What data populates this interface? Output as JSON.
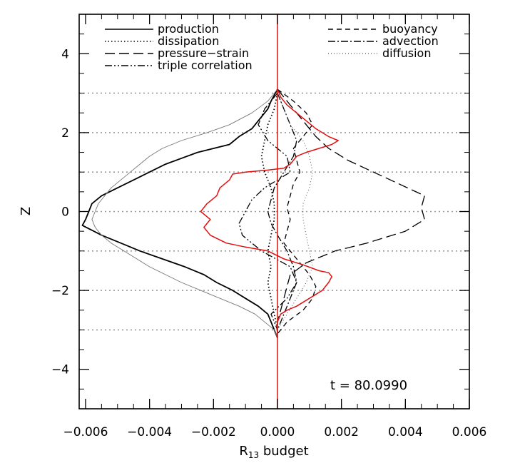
{
  "chart_data": {
    "type": "line",
    "xlabel_main": "R",
    "xlabel_sub": "13",
    "xlabel_rest": " budget",
    "ylabel": "Z",
    "annotation": "t = 80.0990",
    "xlim": [
      -0.0062,
      0.006
    ],
    "ylim": [
      -5,
      5
    ],
    "xticks": [
      -0.006,
      -0.004,
      -0.002,
      0.0,
      0.002,
      0.004,
      0.006
    ],
    "xtick_labels": [
      "−0.006",
      "−0.004",
      "−0.002",
      "0.000",
      "0.002",
      "0.004",
      "0.006"
    ],
    "yticks": [
      -4,
      -2,
      0,
      2,
      4
    ],
    "ytick_labels": [
      "−4",
      "−2",
      "0",
      "2",
      "4"
    ],
    "hlines": [
      -3,
      -2,
      -1,
      0,
      1,
      2,
      3
    ],
    "hline_style": "dotted grey",
    "legend": [
      {
        "label": "production",
        "dash": "solid"
      },
      {
        "label": "dissipation",
        "dash": "dotted"
      },
      {
        "label": "pressure−strain",
        "dash": "longdash"
      },
      {
        "label": "triple correlation",
        "dash": "dashdotdot"
      },
      {
        "label": "buoyancy",
        "dash": "dashed"
      },
      {
        "label": "advection",
        "dash": "dashdot"
      },
      {
        "label": "diffusion",
        "dash": "thindotted"
      }
    ],
    "series": [
      {
        "name": "production",
        "style": "solid",
        "color": "#000000",
        "width": 1.8,
        "z": [
          3.1,
          2.8,
          2.6,
          2.3,
          2.1,
          1.9,
          1.7,
          1.5,
          1.2,
          1.0,
          0.8,
          0.6,
          0.4,
          0.2,
          0.0,
          -0.2,
          -0.35,
          -0.6,
          -0.8,
          -1.0,
          -1.2,
          -1.4,
          -1.6,
          -1.8,
          -2.0,
          -2.2,
          -2.4,
          -2.6,
          -2.8,
          -3.0,
          -3.2
        ],
        "x": [
          0.0,
          -0.0002,
          -0.0003,
          -0.0006,
          -0.0008,
          -0.0012,
          -0.0015,
          -0.0025,
          -0.0035,
          -0.004,
          -0.0045,
          -0.005,
          -0.0055,
          -0.0058,
          -0.0059,
          -0.006,
          -0.0061,
          -0.0055,
          -0.0049,
          -0.0043,
          -0.0036,
          -0.0029,
          -0.0023,
          -0.0019,
          -0.0014,
          -0.001,
          -0.0006,
          -0.0003,
          -0.0002,
          -0.0001,
          0.0
        ]
      },
      {
        "name": "dissipation",
        "style": "dotted",
        "color": "#000000",
        "width": 1.8,
        "z": [
          3.0,
          2.6,
          2.2,
          1.8,
          1.4,
          1.0,
          0.6,
          0.2,
          -0.2,
          -0.6,
          -1.0,
          -1.4,
          -1.8,
          -2.2,
          -2.6,
          -3.0
        ],
        "x": [
          0.0,
          -0.0001,
          -0.0003,
          -0.0004,
          -0.0005,
          -0.0004,
          -0.0002,
          -0.0001,
          -0.0001,
          -0.0002,
          -0.0003,
          -0.0002,
          -0.0003,
          -0.0002,
          -0.0001,
          0.0
        ]
      },
      {
        "name": "pressure−strain",
        "style": "longdash",
        "color": "#000000",
        "width": 1.3,
        "z": [
          3.1,
          2.8,
          2.5,
          2.2,
          1.9,
          1.6,
          1.3,
          1.0,
          0.7,
          0.4,
          0.1,
          -0.2,
          -0.5,
          -0.8,
          -1.0,
          -1.3,
          -1.6,
          -1.9,
          -2.2,
          -2.5,
          -2.8,
          -3.1
        ],
        "x": [
          0.0,
          0.0003,
          0.0006,
          0.0009,
          0.0012,
          0.0016,
          0.0022,
          0.003,
          0.0038,
          0.0046,
          0.0045,
          0.0046,
          0.004,
          0.0028,
          0.0018,
          0.0009,
          0.0004,
          0.0003,
          0.0002,
          0.0001,
          0.0,
          0.0
        ]
      },
      {
        "name": "triple correlation",
        "style": "dashdotdot",
        "color": "#000000",
        "width": 1.3,
        "z": [
          3.0,
          2.6,
          2.2,
          1.8,
          1.4,
          1.0,
          0.6,
          0.3,
          0.0,
          -0.3,
          -0.6,
          -1.0,
          -1.4,
          -1.8,
          -2.2,
          -2.6,
          -3.0
        ],
        "x": [
          0.0,
          -0.0004,
          -0.0006,
          -0.0003,
          0.0003,
          0.0004,
          -0.0004,
          -0.0008,
          -0.001,
          -0.0012,
          -0.0011,
          -0.0005,
          0.0004,
          0.0006,
          0.0003,
          -0.0002,
          0.0
        ]
      },
      {
        "name": "buoyancy",
        "style": "dashed",
        "color": "#000000",
        "width": 1.3,
        "z": [
          3.1,
          2.8,
          2.5,
          2.2,
          1.9,
          1.6,
          1.3,
          1.0,
          0.7,
          0.4,
          0.1,
          -0.2,
          -0.5,
          -0.8,
          -1.0,
          -1.3,
          -1.6,
          -1.9,
          -2.2,
          -2.5,
          -2.8,
          -3.1
        ],
        "x": [
          0.0,
          0.0005,
          0.0009,
          0.0011,
          0.0008,
          0.0005,
          0.0006,
          0.0007,
          0.0005,
          0.0004,
          0.0003,
          0.0004,
          0.0003,
          0.0002,
          0.0004,
          0.0007,
          0.001,
          0.0012,
          0.0011,
          0.0008,
          0.0003,
          0.0
        ]
      },
      {
        "name": "advection",
        "style": "dashdot",
        "color": "#000000",
        "width": 1.3,
        "z": [
          3.0,
          2.6,
          2.2,
          1.8,
          1.4,
          1.0,
          0.6,
          0.3,
          0.0,
          -0.3,
          -0.6,
          -1.0,
          -1.4,
          -1.8,
          -2.2,
          -2.6,
          -3.0
        ],
        "x": [
          0.0,
          0.0002,
          0.0004,
          0.0006,
          0.0005,
          0.0002,
          -0.0001,
          -0.0002,
          -0.0003,
          -0.0002,
          0.0,
          0.0003,
          0.0005,
          0.0006,
          0.0004,
          0.0002,
          0.0
        ]
      },
      {
        "name": "diffusion",
        "style": "thindotted",
        "color": "#555555",
        "width": 1.0,
        "z": [
          3.0,
          2.6,
          2.2,
          1.8,
          1.4,
          1.0,
          0.6,
          0.2,
          -0.2,
          -0.6,
          -1.0,
          -1.4,
          -1.8,
          -2.2,
          -2.6,
          -3.0
        ],
        "x": [
          0.0,
          0.0002,
          0.0004,
          0.0008,
          0.001,
          0.0011,
          0.001,
          0.0008,
          0.0008,
          0.0009,
          0.001,
          0.0011,
          0.0009,
          0.0006,
          0.0003,
          0.0
        ]
      },
      {
        "name": "",
        "style": "thin",
        "color": "#777777",
        "width": 0.9,
        "z": [
          3.1,
          2.8,
          2.5,
          2.2,
          2.0,
          1.8,
          1.6,
          1.4,
          1.2,
          1.0,
          0.8,
          0.6,
          0.4,
          0.2,
          0.0,
          -0.2,
          -0.4,
          -0.6,
          -0.8,
          -1.0,
          -1.2,
          -1.4,
          -1.6,
          -1.8,
          -2.0,
          -2.2,
          -2.4,
          -2.6,
          -2.8,
          -3.0,
          -3.2
        ],
        "x": [
          0.0,
          -0.0003,
          -0.0008,
          -0.0015,
          -0.0022,
          -0.003,
          -0.0036,
          -0.004,
          -0.0043,
          -0.0046,
          -0.0049,
          -0.0052,
          -0.0054,
          -0.0056,
          -0.0057,
          -0.0058,
          -0.0057,
          -0.0055,
          -0.0052,
          -0.0048,
          -0.0044,
          -0.004,
          -0.0035,
          -0.003,
          -0.0024,
          -0.0018,
          -0.0012,
          -0.0007,
          -0.0004,
          -0.0001,
          0.0
        ]
      },
      {
        "name": "",
        "style": "solid",
        "color": "#e01010",
        "width": 1.5,
        "z": [
          3.1,
          2.9,
          2.7,
          2.5,
          2.3,
          2.1,
          1.9,
          1.8,
          1.7,
          1.6,
          1.5,
          1.4,
          1.2,
          1.1,
          1.05,
          1.0,
          0.95,
          0.8,
          0.6,
          0.4,
          0.2,
          0.0,
          -0.2,
          -0.4,
          -0.6,
          -0.8,
          -0.9,
          -1.0,
          -1.2,
          -1.35,
          -1.5,
          -1.55,
          -1.65,
          -1.8,
          -2.0,
          -2.2,
          -2.4,
          -2.5,
          -2.6,
          -2.8,
          -3.0,
          -3.2
        ],
        "x": [
          0.0,
          0.0001,
          0.0003,
          0.0006,
          0.0009,
          0.0012,
          0.0016,
          0.0019,
          0.0017,
          0.0013,
          0.0009,
          0.0006,
          0.0004,
          0.0002,
          -0.0003,
          -0.001,
          -0.0014,
          -0.0015,
          -0.0018,
          -0.0019,
          -0.0022,
          -0.0024,
          -0.0021,
          -0.0023,
          -0.0021,
          -0.0016,
          -0.001,
          -0.0003,
          0.0002,
          0.0008,
          0.0013,
          0.0016,
          0.0017,
          0.0016,
          0.0014,
          0.001,
          0.0006,
          0.0003,
          0.0001,
          0.0,
          0.0,
          0.0
        ]
      }
    ]
  }
}
